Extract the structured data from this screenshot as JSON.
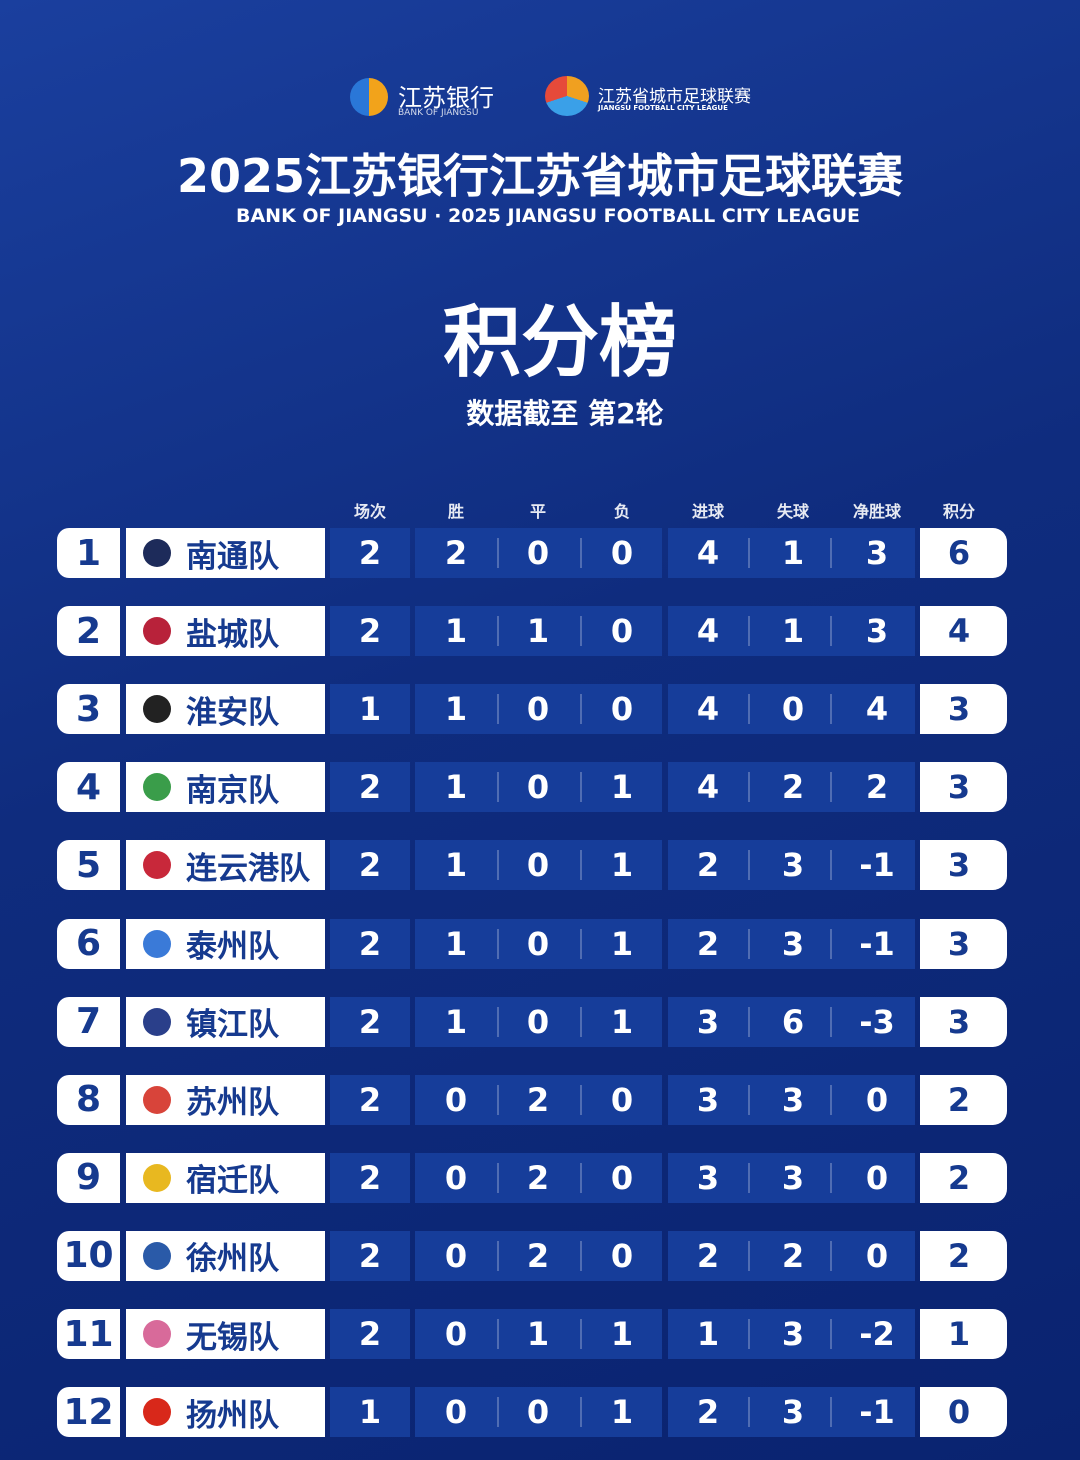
{
  "header": {
    "sponsor_cn": "江苏银行",
    "sponsor_en": "BANK OF JIANGSU",
    "league_cn": "江苏省城市足球联赛",
    "league_en": "JIANGSU FOOTBALL CITY LEAGUE",
    "title": "2025江苏银行江苏省城市足球联赛",
    "subtitle": "BANK OF JIANGSU · 2025 JIANGSU FOOTBALL CITY LEAGUE",
    "heading": "积分榜",
    "note": "数据截至 第2轮"
  },
  "table": {
    "columns": [
      "场次",
      "胜",
      "平",
      "负",
      "进球",
      "失球",
      "净胜球",
      "积分"
    ],
    "rows": [
      [
        1,
        "南通队",
        2,
        2,
        0,
        0,
        4,
        1,
        3,
        6
      ],
      [
        2,
        "盐城队",
        2,
        1,
        1,
        0,
        4,
        1,
        3,
        4
      ],
      [
        3,
        "淮安队",
        1,
        1,
        0,
        0,
        4,
        0,
        4,
        3
      ],
      [
        4,
        "南京队",
        2,
        1,
        0,
        1,
        4,
        2,
        2,
        3
      ],
      [
        5,
        "连云港队",
        2,
        1,
        0,
        1,
        2,
        3,
        -1,
        3
      ],
      [
        6,
        "泰州队",
        2,
        1,
        0,
        1,
        2,
        3,
        -1,
        3
      ],
      [
        7,
        "镇江队",
        2,
        1,
        0,
        1,
        3,
        6,
        -3,
        3
      ],
      [
        8,
        "苏州队",
        2,
        0,
        2,
        0,
        3,
        3,
        0,
        2
      ],
      [
        9,
        "宿迁队",
        2,
        0,
        2,
        0,
        3,
        3,
        0,
        2
      ],
      [
        10,
        "徐州队",
        2,
        0,
        2,
        0,
        2,
        2,
        0,
        2
      ],
      [
        11,
        "无锡队",
        2,
        0,
        1,
        1,
        1,
        3,
        -2,
        1
      ],
      [
        12,
        "扬州队",
        1,
        0,
        0,
        1,
        2,
        3,
        -1,
        0
      ]
    ]
  }
}
